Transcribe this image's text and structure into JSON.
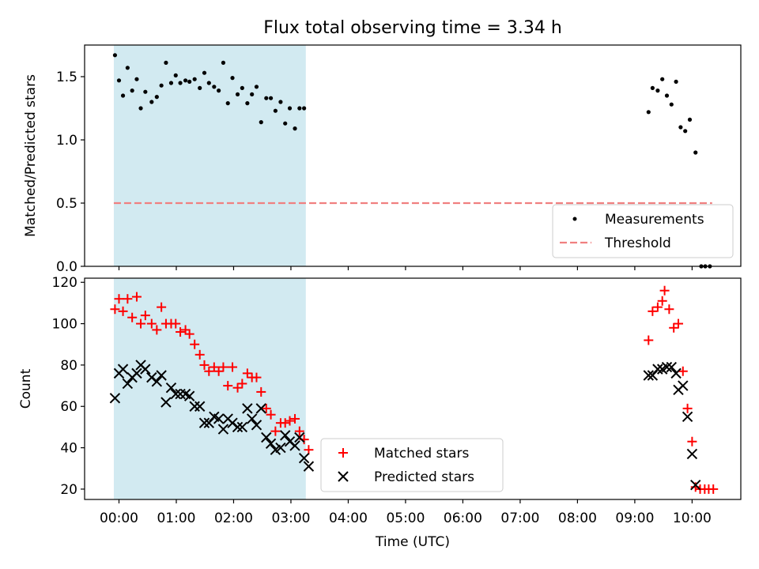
{
  "title": "Flux total observing time = 3.34 h",
  "colors": {
    "measurement": "#000000",
    "threshold": "#f08080",
    "matched": "#ff0000",
    "predicted": "#000000",
    "shade": "#add8e6"
  },
  "chart_data": [
    {
      "type": "scatter",
      "name": "ratio-panel",
      "ylabel": "Matched/Predicted stars",
      "xlim": [
        -0.6,
        10.85
      ],
      "ylim": [
        0.0,
        1.75
      ],
      "yticks": [
        0.0,
        0.5,
        1.0,
        1.5
      ],
      "ytick_labels": [
        "0.0",
        "0.5",
        "1.0",
        "1.5"
      ],
      "shaded_x": [
        -0.09,
        3.26
      ],
      "threshold": {
        "label": "Threshold",
        "y": 0.5,
        "x": [
          -0.09,
          10.35
        ]
      },
      "series": [
        {
          "name": "Measurements",
          "points": [
            [
              -0.07,
              1.67
            ],
            [
              0.0,
              1.47
            ],
            [
              0.07,
              1.35
            ],
            [
              0.15,
              1.57
            ],
            [
              0.23,
              1.39
            ],
            [
              0.31,
              1.48
            ],
            [
              0.38,
              1.25
            ],
            [
              0.46,
              1.38
            ],
            [
              0.57,
              1.3
            ],
            [
              0.66,
              1.34
            ],
            [
              0.74,
              1.43
            ],
            [
              0.82,
              1.61
            ],
            [
              0.91,
              1.45
            ],
            [
              0.99,
              1.51
            ],
            [
              1.07,
              1.45
            ],
            [
              1.16,
              1.47
            ],
            [
              1.23,
              1.46
            ],
            [
              1.32,
              1.48
            ],
            [
              1.41,
              1.41
            ],
            [
              1.49,
              1.53
            ],
            [
              1.57,
              1.45
            ],
            [
              1.66,
              1.42
            ],
            [
              1.74,
              1.39
            ],
            [
              1.82,
              1.61
            ],
            [
              1.9,
              1.29
            ],
            [
              1.98,
              1.49
            ],
            [
              2.07,
              1.36
            ],
            [
              2.15,
              1.41
            ],
            [
              2.24,
              1.29
            ],
            [
              2.32,
              1.36
            ],
            [
              2.4,
              1.42
            ],
            [
              2.48,
              1.14
            ],
            [
              2.57,
              1.33
            ],
            [
              2.65,
              1.33
            ],
            [
              2.73,
              1.23
            ],
            [
              2.82,
              1.3
            ],
            [
              2.9,
              1.13
            ],
            [
              2.98,
              1.25
            ],
            [
              3.07,
              1.09
            ],
            [
              3.15,
              1.25
            ],
            [
              3.23,
              1.25
            ],
            [
              9.24,
              1.22
            ],
            [
              9.31,
              1.41
            ],
            [
              9.4,
              1.39
            ],
            [
              9.48,
              1.48
            ],
            [
              9.56,
              1.35
            ],
            [
              9.64,
              1.28
            ],
            [
              9.72,
              1.46
            ],
            [
              9.8,
              1.1
            ],
            [
              9.88,
              1.07
            ],
            [
              9.96,
              1.16
            ],
            [
              10.06,
              0.9
            ],
            [
              10.16,
              0.0
            ],
            [
              10.23,
              0.0
            ],
            [
              10.31,
              0.0
            ]
          ]
        }
      ],
      "legend": {
        "position": "lower-right",
        "entries": [
          "Measurements",
          "Threshold"
        ]
      }
    },
    {
      "type": "scatter",
      "name": "count-panel",
      "ylabel": "Count",
      "xlabel": "Time (UTC)",
      "xlim": [
        -0.6,
        10.85
      ],
      "ylim": [
        15,
        122
      ],
      "yticks": [
        20,
        40,
        60,
        80,
        100,
        120
      ],
      "ytick_labels": [
        "20",
        "40",
        "60",
        "80",
        "100",
        "120"
      ],
      "xticks": [
        0,
        1,
        2,
        3,
        4,
        5,
        6,
        7,
        8,
        9,
        10
      ],
      "xtick_labels": [
        "00:00",
        "01:00",
        "02:00",
        "03:00",
        "04:00",
        "05:00",
        "06:00",
        "07:00",
        "08:00",
        "09:00",
        "10:00"
      ],
      "shaded_x": [
        -0.09,
        3.26
      ],
      "series": [
        {
          "name": "Matched stars",
          "marker": "plus",
          "points": [
            [
              -0.07,
              107
            ],
            [
              0.0,
              112
            ],
            [
              0.07,
              106
            ],
            [
              0.15,
              112
            ],
            [
              0.23,
              103
            ],
            [
              0.31,
              113
            ],
            [
              0.38,
              100
            ],
            [
              0.46,
              104
            ],
            [
              0.57,
              100
            ],
            [
              0.66,
              97
            ],
            [
              0.74,
              108
            ],
            [
              0.82,
              100
            ],
            [
              0.91,
              100
            ],
            [
              0.99,
              100
            ],
            [
              1.07,
              96
            ],
            [
              1.16,
              97
            ],
            [
              1.23,
              95
            ],
            [
              1.32,
              90
            ],
            [
              1.41,
              85
            ],
            [
              1.49,
              80
            ],
            [
              1.57,
              77
            ],
            [
              1.66,
              79
            ],
            [
              1.74,
              77
            ],
            [
              1.82,
              79
            ],
            [
              1.9,
              70
            ],
            [
              1.98,
              79
            ],
            [
              2.07,
              69
            ],
            [
              2.15,
              71
            ],
            [
              2.24,
              76
            ],
            [
              2.32,
              74
            ],
            [
              2.4,
              74
            ],
            [
              2.48,
              67
            ],
            [
              2.57,
              59
            ],
            [
              2.65,
              56
            ],
            [
              2.73,
              48
            ],
            [
              2.82,
              52
            ],
            [
              2.9,
              52
            ],
            [
              2.98,
              53
            ],
            [
              3.07,
              54
            ],
            [
              3.15,
              48
            ],
            [
              3.23,
              44
            ],
            [
              3.31,
              39
            ],
            [
              9.24,
              92
            ],
            [
              9.31,
              106
            ],
            [
              9.4,
              108
            ],
            [
              9.48,
              111
            ],
            [
              9.52,
              116
            ],
            [
              9.6,
              107
            ],
            [
              9.68,
              98
            ],
            [
              9.76,
              100
            ],
            [
              9.84,
              77
            ],
            [
              9.92,
              59
            ],
            [
              10.0,
              43
            ],
            [
              10.06,
              21
            ],
            [
              10.14,
              20
            ],
            [
              10.22,
              20
            ],
            [
              10.29,
              20
            ],
            [
              10.37,
              20
            ]
          ]
        },
        {
          "name": "Predicted stars",
          "marker": "cross",
          "points": [
            [
              -0.07,
              64
            ],
            [
              0.0,
              76
            ],
            [
              0.07,
              78
            ],
            [
              0.15,
              71
            ],
            [
              0.23,
              74
            ],
            [
              0.31,
              76
            ],
            [
              0.38,
              80
            ],
            [
              0.46,
              78
            ],
            [
              0.57,
              74
            ],
            [
              0.66,
              72
            ],
            [
              0.74,
              75
            ],
            [
              0.82,
              62
            ],
            [
              0.91,
              69
            ],
            [
              0.99,
              66
            ],
            [
              1.07,
              66
            ],
            [
              1.16,
              66
            ],
            [
              1.23,
              65
            ],
            [
              1.32,
              60
            ],
            [
              1.41,
              60
            ],
            [
              1.49,
              52
            ],
            [
              1.57,
              52
            ],
            [
              1.66,
              55
            ],
            [
              1.74,
              54
            ],
            [
              1.82,
              49
            ],
            [
              1.9,
              54
            ],
            [
              1.98,
              52
            ],
            [
              2.07,
              50
            ],
            [
              2.15,
              50
            ],
            [
              2.24,
              59
            ],
            [
              2.32,
              54
            ],
            [
              2.4,
              51
            ],
            [
              2.48,
              59
            ],
            [
              2.57,
              45
            ],
            [
              2.65,
              42
            ],
            [
              2.73,
              39
            ],
            [
              2.82,
              40
            ],
            [
              2.9,
              46
            ],
            [
              2.98,
              43
            ],
            [
              3.07,
              41
            ],
            [
              3.15,
              45
            ],
            [
              3.23,
              35
            ],
            [
              3.31,
              31
            ],
            [
              9.24,
              75
            ],
            [
              9.31,
              75
            ],
            [
              9.4,
              78
            ],
            [
              9.48,
              78
            ],
            [
              9.56,
              79
            ],
            [
              9.64,
              79
            ],
            [
              9.72,
              76
            ],
            [
              9.76,
              68
            ],
            [
              9.84,
              70
            ],
            [
              9.92,
              55
            ],
            [
              10.0,
              37
            ],
            [
              10.06,
              22
            ]
          ]
        }
      ],
      "legend": {
        "position": "lower-center",
        "entries": [
          "Matched stars",
          "Predicted stars"
        ]
      }
    }
  ]
}
